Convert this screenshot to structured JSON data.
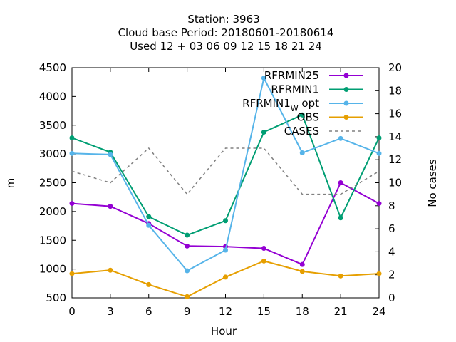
{
  "chart_data": {
    "type": "line",
    "title_lines": [
      "Station:     3963",
      "Cloud base   Period: 20180601-20180614",
      "Used  12 + 03 06 09 12 15 18 21 24"
    ],
    "xlabel": "Hour",
    "ylabel": "m",
    "y2label": "No cases",
    "x": [
      0,
      3,
      6,
      9,
      12,
      15,
      18,
      21,
      24
    ],
    "xlim": [
      0,
      24
    ],
    "ylim": [
      500,
      4500
    ],
    "y2lim": [
      0,
      20
    ],
    "x_ticks": [
      "0",
      "3",
      "6",
      "9",
      "12",
      "15",
      "18",
      "21",
      "24"
    ],
    "y_ticks": [
      "500",
      "1000",
      "1500",
      "2000",
      "2500",
      "3000",
      "3500",
      "4000",
      "4500"
    ],
    "y2_ticks": [
      "0",
      "2",
      "4",
      "6",
      "8",
      "10",
      "12",
      "14",
      "16",
      "18",
      "20"
    ],
    "legend_position": "top-right",
    "series": [
      {
        "name": "RFRMIN25",
        "color": "#9400d3",
        "axis": "y1",
        "style": "line-points",
        "values": [
          2140,
          2090,
          1790,
          1400,
          1390,
          1360,
          1080,
          2500,
          2140
        ]
      },
      {
        "name": "RFRMIN1",
        "color": "#009e73",
        "axis": "y1",
        "style": "line-points",
        "values": [
          3280,
          3030,
          1910,
          1590,
          1840,
          3380,
          3680,
          1890,
          3280
        ]
      },
      {
        "name": "RFRMIN1",
        "name_subscript": "W",
        "name_suffix": " opt",
        "color": "#56b4e9",
        "axis": "y1",
        "style": "line-points",
        "values": [
          3010,
          2990,
          1760,
          970,
          1330,
          4320,
          3020,
          3270,
          3010
        ]
      },
      {
        "name": "OBS",
        "color": "#e69f00",
        "axis": "y1",
        "style": "line-points",
        "values": [
          920,
          980,
          730,
          520,
          860,
          1140,
          960,
          880,
          920
        ]
      },
      {
        "name": "CASES",
        "color": "#808080",
        "axis": "y2",
        "style": "dashed",
        "values": [
          11,
          10,
          13,
          9,
          13,
          13,
          9,
          9,
          11
        ]
      }
    ]
  }
}
